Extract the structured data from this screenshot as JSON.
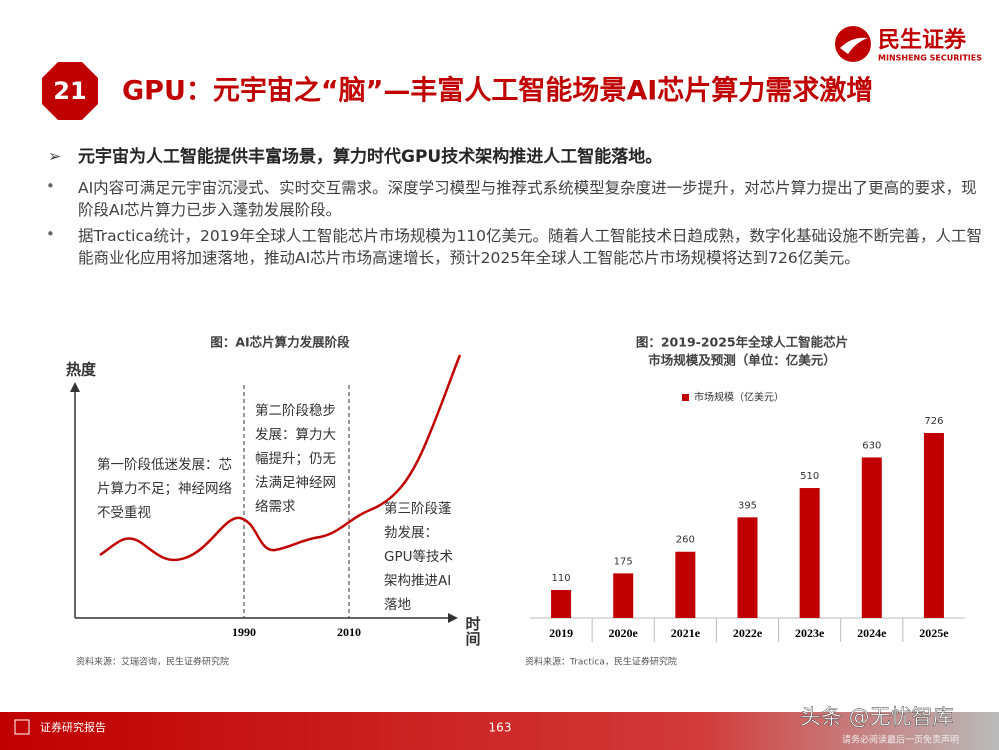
{
  "header": {
    "slide_number": "21",
    "title": "GPU：元宇宙之“脑”—丰富人工智能场景AI芯片算力需求激增",
    "logo_name": "民生证券",
    "logo_subtitle": "MINSHENG SECURITIES"
  },
  "summary": "元宇宙为人工智能提供丰富场景，算力时代GPU技术架构推进人工智能落地。",
  "bullets": [
    "AI内容可满足元宇宙沉浸式、实时交互需求。深度学习模型与推荐式系统模型复杂度进一步提升，对芯片算力提出了更高的要求，现阶段AI芯片算力已步入蓬勃发展阶段。",
    "据Tractica统计，2019年全球人工智能芯片市场规模为110亿美元。随着人工智能技术日趋成熟，数字化基础设施不断完善，人工智能商业化应用将加速落地，推动AI芯片市场高速增长，预计2025年全球人工智能芯片市场规模将达到726亿美元。"
  ],
  "stage_chart": {
    "title": "图：AI芯片算力发展阶段",
    "y_label": "热度",
    "x_label": "时间",
    "years": [
      "1990",
      "2010"
    ],
    "stages": [
      [
        "第一阶段低迷发展：芯",
        "片算力不足；神经网络",
        "不受重视"
      ],
      [
        "第二阶段稳步",
        "发展：算力大",
        "幅提升；仍无",
        "法满足神经网",
        "络需求"
      ],
      [
        "第三阶段蓬",
        "勃发展：",
        "GPU等技术",
        "架构推进AI",
        "落地"
      ]
    ],
    "source": "资料来源：艾瑞咨询，民生证券研究院"
  },
  "chart_data": {
    "type": "bar",
    "title": [
      "图：2019-2025年全球人工智能芯片",
      "市场规模及预测（单位：亿美元）"
    ],
    "categories": [
      "2019",
      "2020e",
      "2021e",
      "2022e",
      "2023e",
      "2024e",
      "2025e"
    ],
    "series": [
      {
        "name": "市场规模（亿美元）",
        "color": "#c00000",
        "values": [
          110,
          175,
          260,
          395,
          510,
          630,
          726
        ]
      }
    ],
    "source": "资料来源：Tractica，民生证券研究院"
  },
  "footer": {
    "label": "证券研究报告",
    "page": "163",
    "watermark": "头条 @无忧智库",
    "disclaimer": "请务必阅读最后一页免责声明"
  }
}
